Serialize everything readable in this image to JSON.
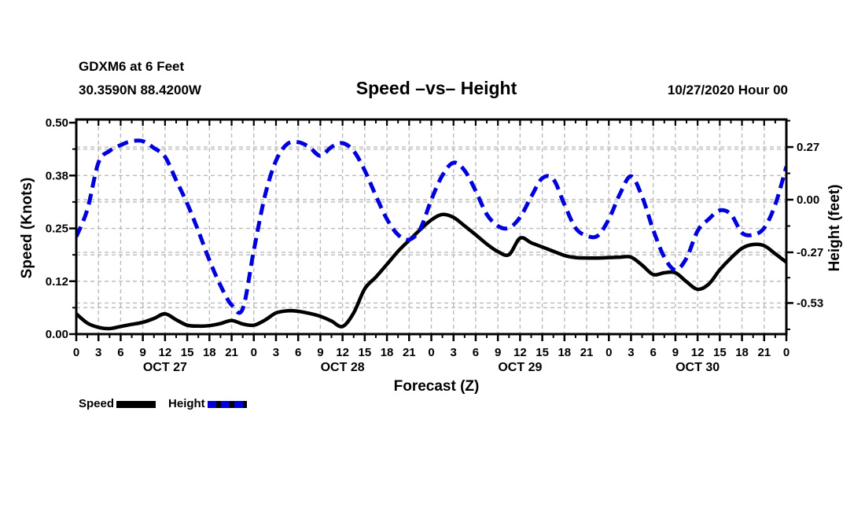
{
  "header": {
    "station_line1": "GDXM6 at 6 Feet",
    "station_line2": "30.3590N 88.4200W",
    "title": "Speed –vs– Height",
    "datetime": "10/27/2020 Hour 00"
  },
  "legend": {
    "speed_label": "Speed",
    "height_label": "Height"
  },
  "colors": {
    "speed": "#000000",
    "height": "#0000dd",
    "grid": "#bbbbbb",
    "axis": "#000000"
  },
  "chart_data": {
    "type": "line",
    "title": "Speed –vs– Height",
    "xlabel": "Forecast (Z)",
    "ylabel_left": "Speed (Knots)",
    "ylabel_right": "Height (feet)",
    "x_range_hours": [
      0,
      96
    ],
    "x_major_step_hours": 3,
    "x_minor_step_hours": 1.5,
    "hour_label_pattern": [
      "0",
      "3",
      "6",
      "9",
      "12",
      "15",
      "18",
      "21"
    ],
    "day_labels": [
      {
        "label": "OCT 27",
        "hour": 12
      },
      {
        "label": "OCT 28",
        "hour": 36
      },
      {
        "label": "OCT 29",
        "hour": 60
      },
      {
        "label": "OCT 30",
        "hour": 84
      }
    ],
    "left_axis": {
      "min": 0,
      "max": 0.5075,
      "ticks": [
        {
          "v": 0.0,
          "label": "0.00"
        },
        {
          "v": 0.125,
          "label": "0.12"
        },
        {
          "v": 0.25,
          "label": "0.25"
        },
        {
          "v": 0.375,
          "label": "0.38"
        },
        {
          "v": 0.5,
          "label": "0.50"
        }
      ],
      "minor_ticks": [
        0.0625,
        0.1875,
        0.3125,
        0.4375
      ]
    },
    "right_axis": {
      "min": -0.6895,
      "max": 0.4113,
      "ticks": [
        {
          "v": 0.27,
          "label": "0.27"
        },
        {
          "v": 0.0,
          "label": "0.00"
        },
        {
          "v": -0.27,
          "label": "-0.27"
        },
        {
          "v": -0.53,
          "label": "-0.53"
        }
      ],
      "minor_ticks": [
        0.405,
        0.135,
        -0.135,
        -0.4,
        -0.665
      ]
    },
    "grid": {
      "vertical_every_hours": 3,
      "horizontal_speed_levels": [
        0.0625,
        0.125,
        0.1875,
        0.25,
        0.3125,
        0.375,
        0.4375
      ],
      "horizontal_height_levels": [
        0.27,
        0.0,
        -0.27,
        -0.53
      ]
    },
    "series": [
      {
        "name": "Speed",
        "axis": "left",
        "style": "solid",
        "points": [
          [
            0,
            0.048
          ],
          [
            1.5,
            0.026
          ],
          [
            3,
            0.016
          ],
          [
            4.5,
            0.013
          ],
          [
            6,
            0.018
          ],
          [
            7.5,
            0.023
          ],
          [
            9,
            0.028
          ],
          [
            10.5,
            0.037
          ],
          [
            12,
            0.048
          ],
          [
            13.5,
            0.034
          ],
          [
            15,
            0.021
          ],
          [
            16.5,
            0.019
          ],
          [
            18,
            0.02
          ],
          [
            19.5,
            0.025
          ],
          [
            21,
            0.032
          ],
          [
            22.5,
            0.024
          ],
          [
            24,
            0.021
          ],
          [
            25.5,
            0.033
          ],
          [
            27,
            0.05
          ],
          [
            28.5,
            0.055
          ],
          [
            30,
            0.054
          ],
          [
            31.5,
            0.049
          ],
          [
            33,
            0.042
          ],
          [
            34.5,
            0.031
          ],
          [
            36,
            0.018
          ],
          [
            37.5,
            0.05
          ],
          [
            39,
            0.107
          ],
          [
            40.5,
            0.135
          ],
          [
            42,
            0.165
          ],
          [
            43.5,
            0.196
          ],
          [
            45,
            0.222
          ],
          [
            46.5,
            0.247
          ],
          [
            48,
            0.27
          ],
          [
            49.5,
            0.283
          ],
          [
            51,
            0.276
          ],
          [
            52.5,
            0.256
          ],
          [
            54,
            0.235
          ],
          [
            55.5,
            0.213
          ],
          [
            57,
            0.195
          ],
          [
            58.5,
            0.188
          ],
          [
            60,
            0.227
          ],
          [
            61.5,
            0.216
          ],
          [
            63,
            0.206
          ],
          [
            64.5,
            0.196
          ],
          [
            66,
            0.186
          ],
          [
            67.5,
            0.181
          ],
          [
            69,
            0.18
          ],
          [
            70.5,
            0.18
          ],
          [
            72,
            0.181
          ],
          [
            73.5,
            0.182
          ],
          [
            75,
            0.182
          ],
          [
            76.5,
            0.163
          ],
          [
            78,
            0.141
          ],
          [
            79.5,
            0.145
          ],
          [
            81,
            0.145
          ],
          [
            82.5,
            0.124
          ],
          [
            84,
            0.106
          ],
          [
            85.5,
            0.118
          ],
          [
            87,
            0.152
          ],
          [
            88.5,
            0.18
          ],
          [
            90,
            0.203
          ],
          [
            91.5,
            0.212
          ],
          [
            93,
            0.209
          ],
          [
            94.5,
            0.19
          ],
          [
            96,
            0.17
          ]
        ]
      },
      {
        "name": "Height",
        "axis": "right",
        "style": "dashed",
        "points": [
          [
            0,
            -0.19
          ],
          [
            1.5,
            -0.05
          ],
          [
            3,
            0.19
          ],
          [
            4.5,
            0.25
          ],
          [
            6,
            0.28
          ],
          [
            7.5,
            0.3
          ],
          [
            9,
            0.3
          ],
          [
            10.5,
            0.265
          ],
          [
            12,
            0.22
          ],
          [
            13.5,
            0.1
          ],
          [
            15,
            -0.02
          ],
          [
            16.5,
            -0.16
          ],
          [
            18,
            -0.31
          ],
          [
            19.5,
            -0.44
          ],
          [
            21,
            -0.54
          ],
          [
            22.5,
            -0.56
          ],
          [
            24,
            -0.26
          ],
          [
            25.5,
            0.02
          ],
          [
            27,
            0.2
          ],
          [
            28.5,
            0.285
          ],
          [
            30,
            0.295
          ],
          [
            31.5,
            0.27
          ],
          [
            33,
            0.225
          ],
          [
            34.5,
            0.27
          ],
          [
            36,
            0.29
          ],
          [
            37.5,
            0.25
          ],
          [
            39,
            0.15
          ],
          [
            40.5,
            0.02
          ],
          [
            42,
            -0.1
          ],
          [
            43.5,
            -0.18
          ],
          [
            45,
            -0.205
          ],
          [
            46.5,
            -0.15
          ],
          [
            48,
            0.0
          ],
          [
            49.5,
            0.125
          ],
          [
            51,
            0.19
          ],
          [
            52.5,
            0.15
          ],
          [
            54,
            0.045
          ],
          [
            55.5,
            -0.075
          ],
          [
            57,
            -0.135
          ],
          [
            58.5,
            -0.145
          ],
          [
            60,
            -0.09
          ],
          [
            61.5,
            0.015
          ],
          [
            63,
            0.11
          ],
          [
            64.5,
            0.105
          ],
          [
            66,
            -0.025
          ],
          [
            67.5,
            -0.145
          ],
          [
            69,
            -0.185
          ],
          [
            70.5,
            -0.185
          ],
          [
            72,
            -0.1
          ],
          [
            73.5,
            0.03
          ],
          [
            75,
            0.12
          ],
          [
            76.5,
            0.015
          ],
          [
            78,
            -0.155
          ],
          [
            79.5,
            -0.295
          ],
          [
            81,
            -0.36
          ],
          [
            82.5,
            -0.3
          ],
          [
            84,
            -0.16
          ],
          [
            85.5,
            -0.1
          ],
          [
            87,
            -0.055
          ],
          [
            88.5,
            -0.075
          ],
          [
            90,
            -0.17
          ],
          [
            91.5,
            -0.18
          ],
          [
            93,
            -0.145
          ],
          [
            94.5,
            -0.025
          ],
          [
            96,
            0.17
          ]
        ]
      }
    ]
  }
}
